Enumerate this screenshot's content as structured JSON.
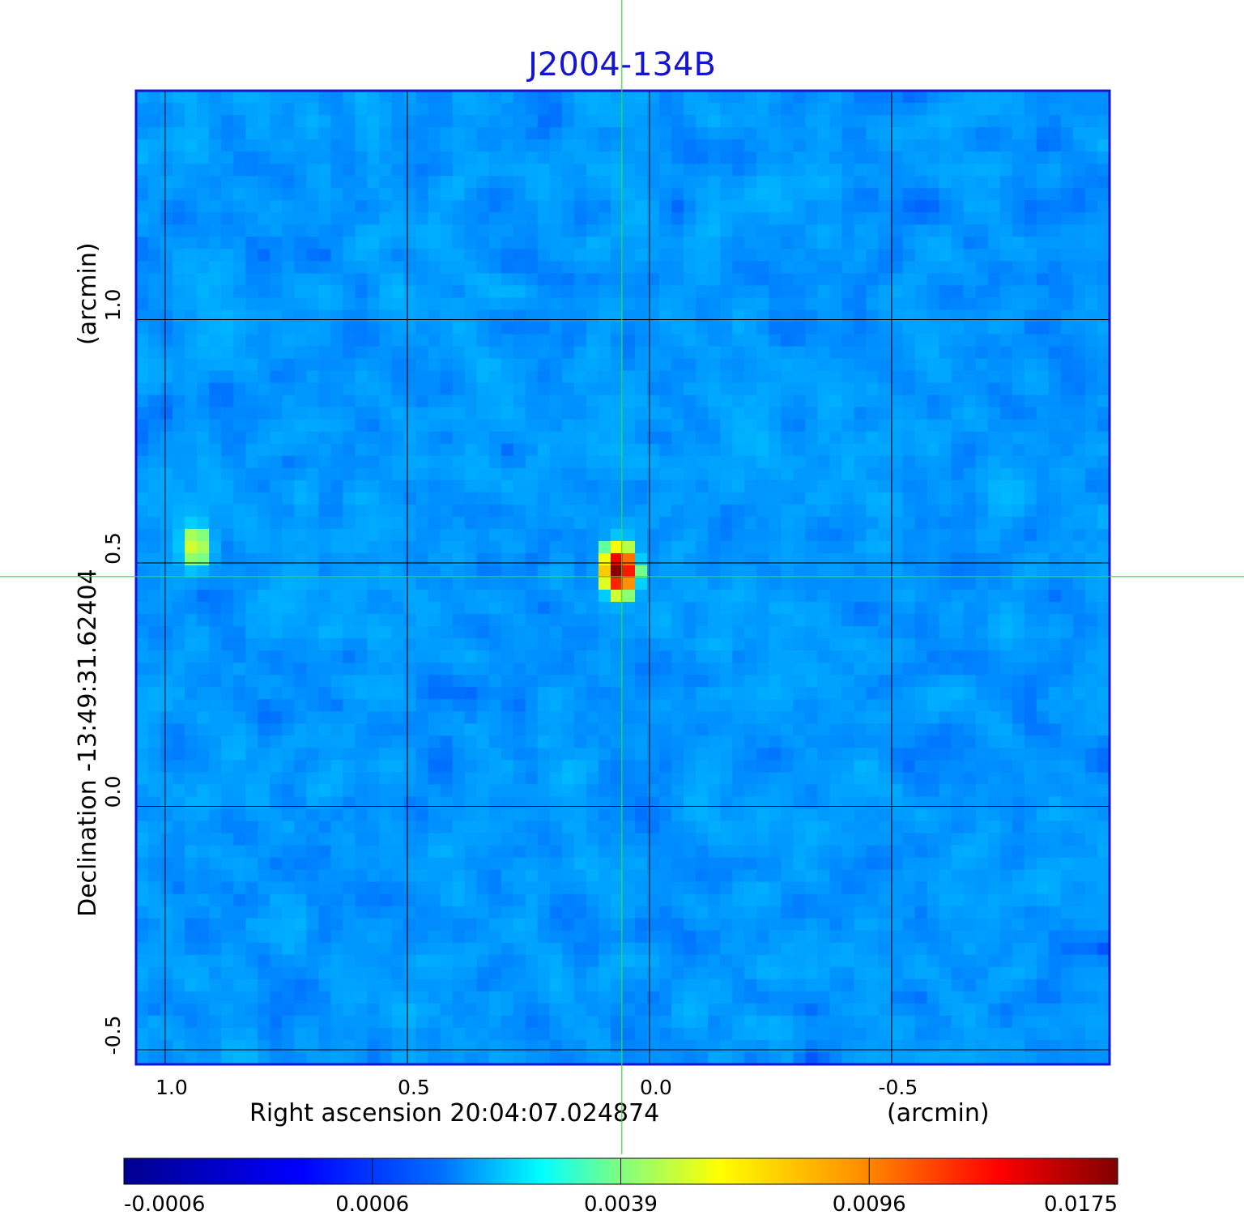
{
  "chart_data": {
    "type": "heatmap",
    "title": "J2004-134B",
    "xlabel": "Right ascension  20:04:07.024874",
    "xunit": "(arcmin)",
    "ylabel": "Declination  -13:49:31.62404",
    "yunit": "(arcmin)",
    "xlim": [
      1.06,
      -0.95
    ],
    "ylim": [
      -0.53,
      1.47
    ],
    "x_ticks": [
      {
        "value": 1.0,
        "label": "1.0"
      },
      {
        "value": 0.5,
        "label": "0.5"
      },
      {
        "value": 0.0,
        "label": "0.0"
      },
      {
        "value": -0.5,
        "label": "-0.5"
      }
    ],
    "y_ticks": [
      {
        "value": 1.0,
        "label": "1.0"
      },
      {
        "value": 0.5,
        "label": "0.5"
      },
      {
        "value": 0.0,
        "label": "0.0"
      },
      {
        "value": -0.5,
        "label": "-0.5"
      }
    ],
    "grid": true,
    "crosshair": {
      "x": 0.057,
      "y": 0.472
    },
    "colormap": "jet",
    "colorbar": {
      "orientation": "horizontal",
      "ticks": [
        "-0.0006",
        "0.0006",
        "0.0039",
        "0.0096",
        "0.0175"
      ]
    },
    "sources": [
      {
        "x": 0.062,
        "y": 0.485,
        "peak": 0.0175
      },
      {
        "x": 0.938,
        "y": 0.535,
        "peak": 0.0035
      }
    ],
    "background_range": [
      -0.0006,
      0.0009
    ]
  }
}
